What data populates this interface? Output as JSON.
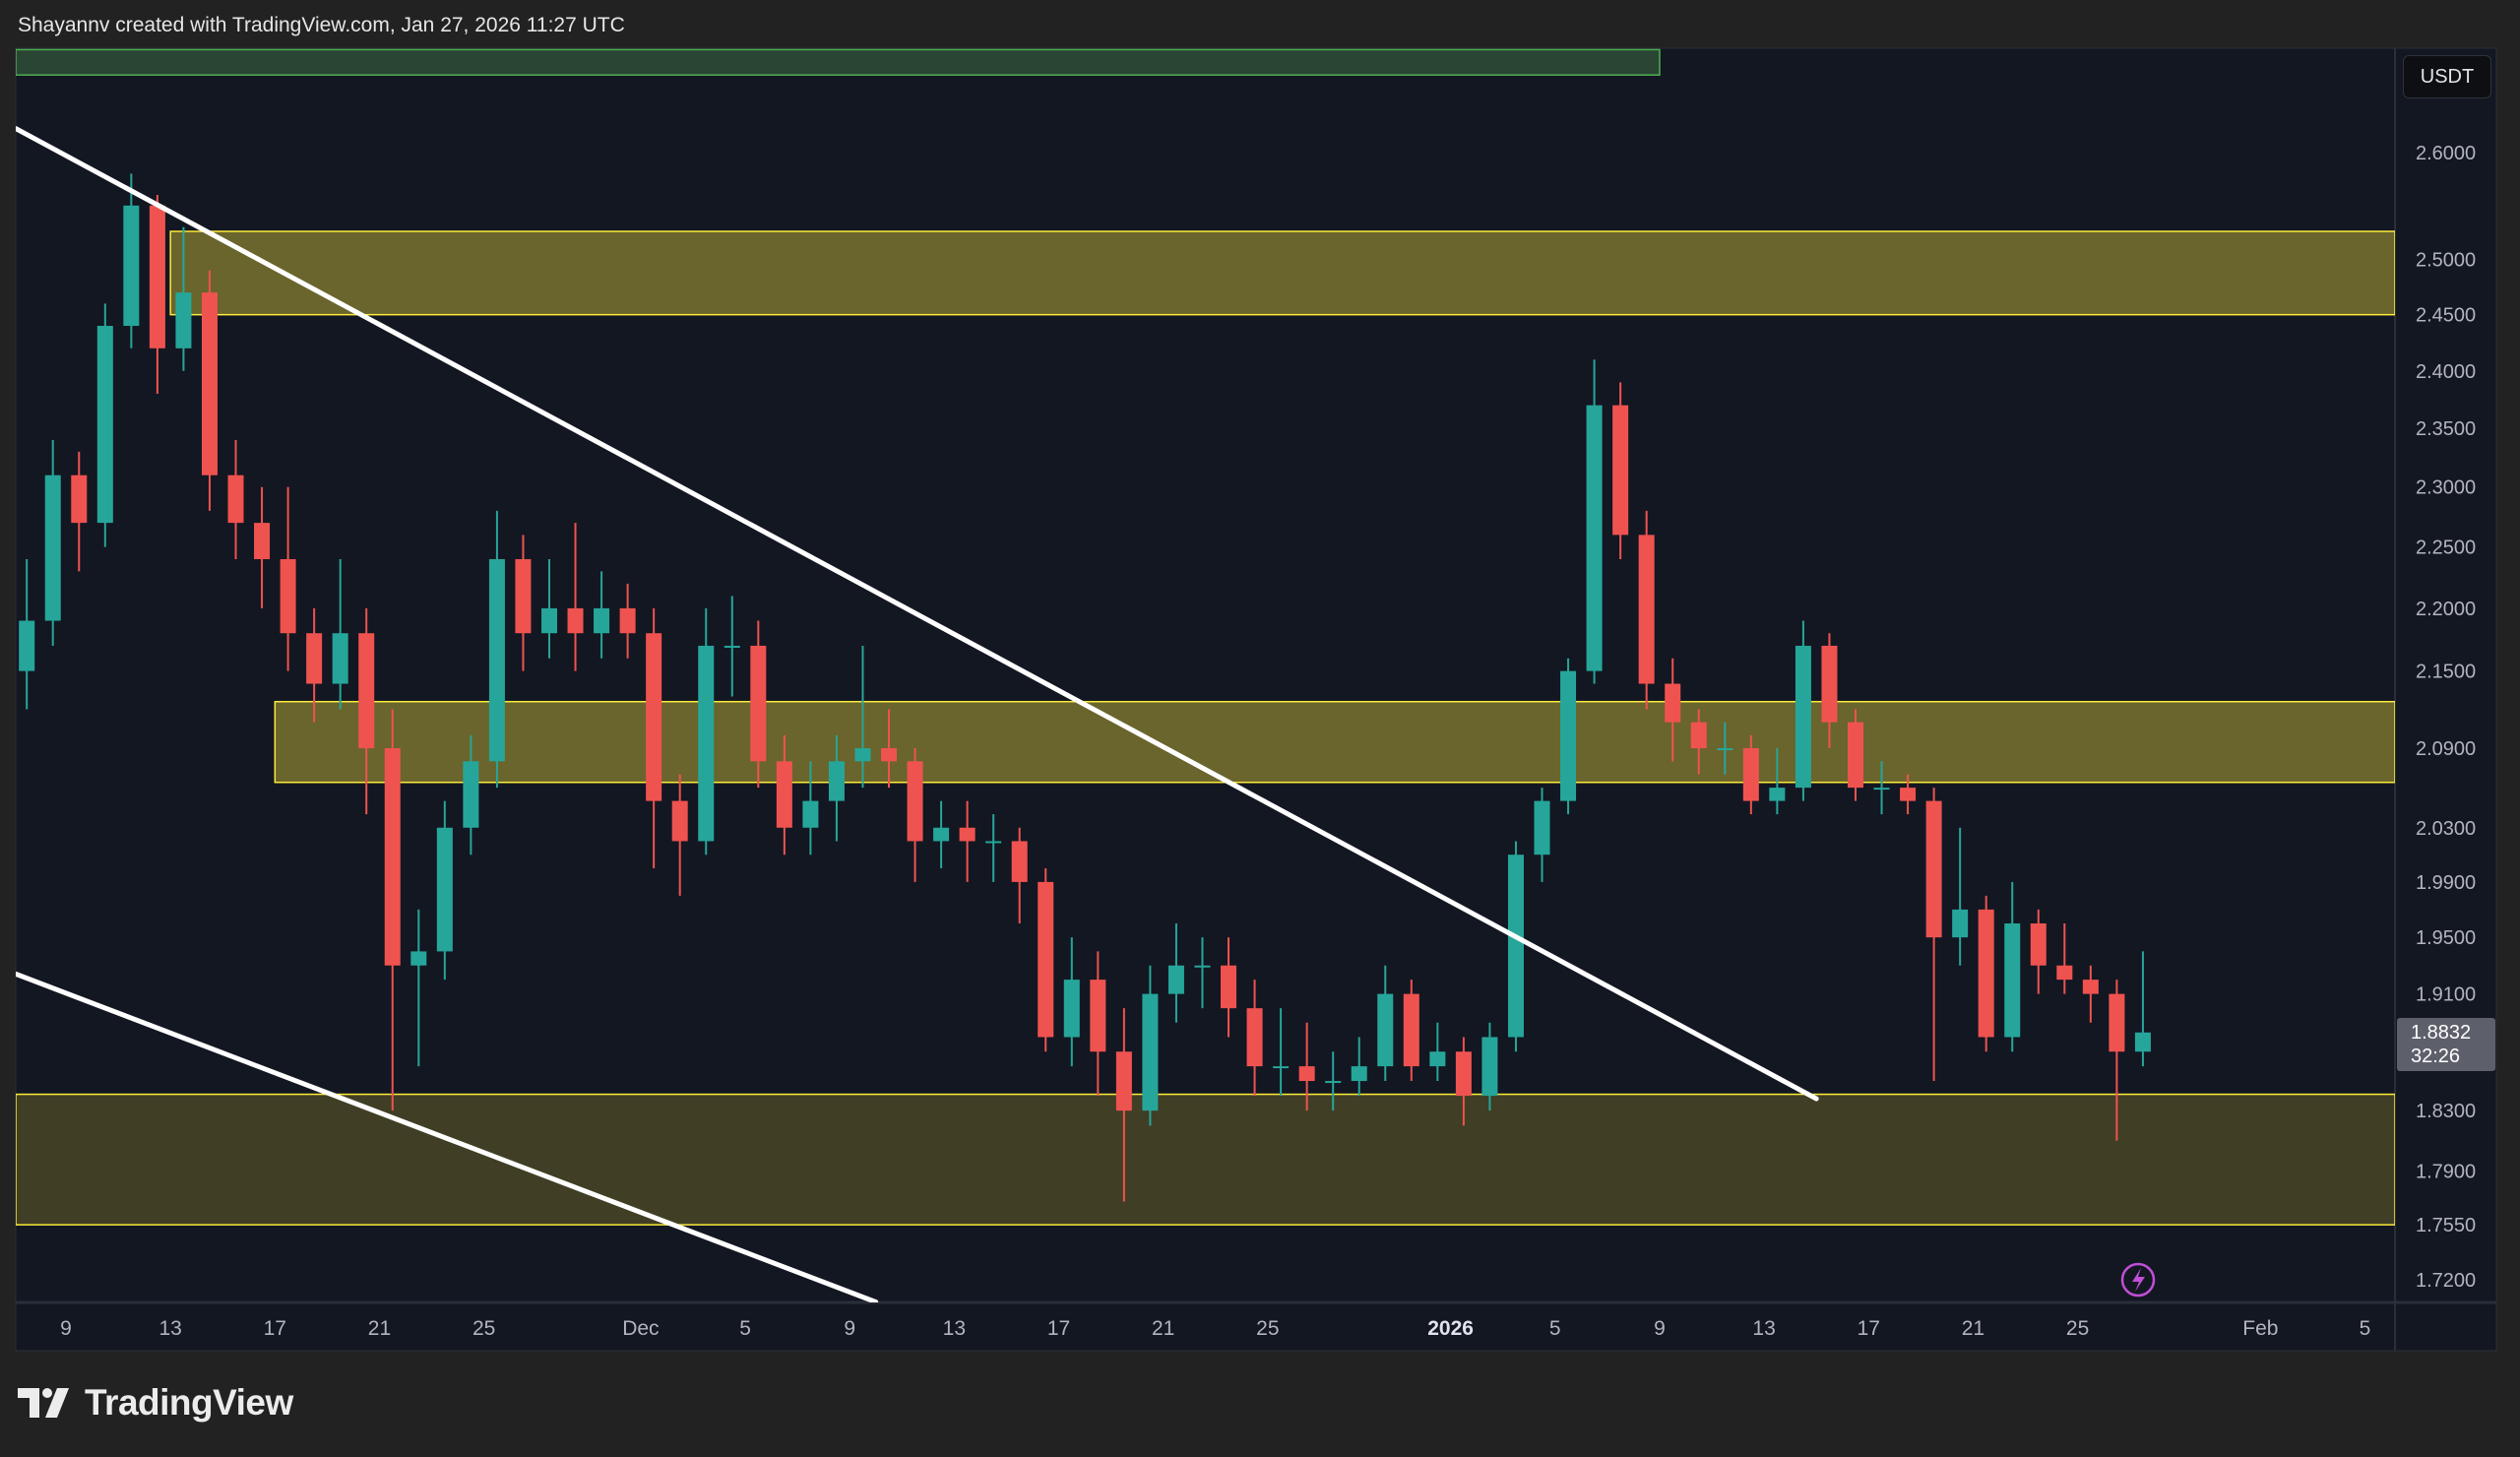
{
  "header": {
    "attribution": "Shayannv created with TradingView.com, Jan 27, 2026 11:27 UTC"
  },
  "price_axis": {
    "currency_button": "USDT",
    "last_price": "1.8832",
    "countdown": "32:26"
  },
  "footer": {
    "logo_text": "TradingView"
  },
  "colors": {
    "up": "#26a69a",
    "down": "#ef5350",
    "zone_fill": "#8a8a2a",
    "zone_border": "#ffeb3b",
    "green_zone": "#2d4a35",
    "trendline": "#ffffff",
    "background": "#131722",
    "alert_icon": "#c04fd6"
  },
  "chart_data": {
    "type": "candlestick",
    "title": "",
    "y_scale": "log",
    "ylim": [
      1.7,
      2.72
    ],
    "xlim": [
      "2025-11-07",
      "2026-02-08"
    ],
    "grid": false,
    "y_ticks": [
      "2.6000",
      "2.5000",
      "2.4500",
      "2.4000",
      "2.3500",
      "2.3000",
      "2.2500",
      "2.2000",
      "2.1500",
      "2.0900",
      "2.0300",
      "1.9900",
      "1.9500",
      "1.9100",
      "1.8300",
      "1.7900",
      "1.7550",
      "1.7200"
    ],
    "x_ticks": [
      {
        "label": "9",
        "date": "2025-11-09"
      },
      {
        "label": "13",
        "date": "2025-11-13"
      },
      {
        "label": "17",
        "date": "2025-11-17"
      },
      {
        "label": "21",
        "date": "2025-11-21"
      },
      {
        "label": "25",
        "date": "2025-11-25"
      },
      {
        "label": "Dec",
        "date": "2025-12-01"
      },
      {
        "label": "5",
        "date": "2025-12-05"
      },
      {
        "label": "9",
        "date": "2025-12-09"
      },
      {
        "label": "13",
        "date": "2025-12-13"
      },
      {
        "label": "17",
        "date": "2025-12-17"
      },
      {
        "label": "21",
        "date": "2025-12-21"
      },
      {
        "label": "25",
        "date": "2025-12-25"
      },
      {
        "label": "2026",
        "date": "2026-01-01",
        "bold": true
      },
      {
        "label": "5",
        "date": "2026-01-05"
      },
      {
        "label": "9",
        "date": "2026-01-09"
      },
      {
        "label": "13",
        "date": "2026-01-13"
      },
      {
        "label": "17",
        "date": "2026-01-17"
      },
      {
        "label": "21",
        "date": "2026-01-21"
      },
      {
        "label": "25",
        "date": "2026-01-25"
      },
      {
        "label": "Feb",
        "date": "2026-02-01"
      },
      {
        "label": "5",
        "date": "2026-02-05"
      }
    ],
    "candles_columns": [
      "date",
      "open",
      "high",
      "low",
      "close"
    ],
    "candles": [
      [
        "2025-11-07",
        2.15,
        2.24,
        2.12,
        2.19
      ],
      [
        "2025-11-08",
        2.19,
        2.34,
        2.17,
        2.31
      ],
      [
        "2025-11-09",
        2.31,
        2.33,
        2.23,
        2.27
      ],
      [
        "2025-11-10",
        2.27,
        2.46,
        2.25,
        2.44
      ],
      [
        "2025-11-11",
        2.44,
        2.58,
        2.42,
        2.55
      ],
      [
        "2025-11-12",
        2.55,
        2.56,
        2.38,
        2.42
      ],
      [
        "2025-11-13",
        2.42,
        2.53,
        2.4,
        2.47
      ],
      [
        "2025-11-14",
        2.47,
        2.49,
        2.28,
        2.31
      ],
      [
        "2025-11-15",
        2.31,
        2.34,
        2.24,
        2.27
      ],
      [
        "2025-11-16",
        2.27,
        2.3,
        2.2,
        2.24
      ],
      [
        "2025-11-17",
        2.24,
        2.3,
        2.15,
        2.18
      ],
      [
        "2025-11-18",
        2.18,
        2.2,
        2.11,
        2.14
      ],
      [
        "2025-11-19",
        2.14,
        2.24,
        2.12,
        2.18
      ],
      [
        "2025-11-20",
        2.18,
        2.2,
        2.04,
        2.09
      ],
      [
        "2025-11-21",
        2.09,
        2.12,
        1.83,
        1.93
      ],
      [
        "2025-11-22",
        1.93,
        1.97,
        1.86,
        1.94
      ],
      [
        "2025-11-23",
        1.94,
        2.05,
        1.92,
        2.03
      ],
      [
        "2025-11-24",
        2.03,
        2.1,
        2.01,
        2.08
      ],
      [
        "2025-11-25",
        2.08,
        2.28,
        2.06,
        2.24
      ],
      [
        "2025-11-26",
        2.24,
        2.26,
        2.15,
        2.18
      ],
      [
        "2025-11-27",
        2.18,
        2.24,
        2.16,
        2.2
      ],
      [
        "2025-11-28",
        2.2,
        2.27,
        2.15,
        2.18
      ],
      [
        "2025-11-29",
        2.18,
        2.23,
        2.16,
        2.2
      ],
      [
        "2025-11-30",
        2.2,
        2.22,
        2.16,
        2.18
      ],
      [
        "2025-12-01",
        2.18,
        2.2,
        2.0,
        2.05
      ],
      [
        "2025-12-02",
        2.05,
        2.07,
        1.98,
        2.02
      ],
      [
        "2025-12-03",
        2.02,
        2.2,
        2.01,
        2.17
      ],
      [
        "2025-12-04",
        2.17,
        2.21,
        2.13,
        2.17
      ],
      [
        "2025-12-05",
        2.17,
        2.19,
        2.06,
        2.08
      ],
      [
        "2025-12-06",
        2.08,
        2.1,
        2.01,
        2.03
      ],
      [
        "2025-12-07",
        2.03,
        2.08,
        2.01,
        2.05
      ],
      [
        "2025-12-08",
        2.05,
        2.1,
        2.02,
        2.08
      ],
      [
        "2025-12-09",
        2.08,
        2.17,
        2.06,
        2.09
      ],
      [
        "2025-12-10",
        2.09,
        2.12,
        2.06,
        2.08
      ],
      [
        "2025-12-11",
        2.08,
        2.09,
        1.99,
        2.02
      ],
      [
        "2025-12-12",
        2.02,
        2.05,
        2.0,
        2.03
      ],
      [
        "2025-12-13",
        2.03,
        2.05,
        1.99,
        2.02
      ],
      [
        "2025-12-14",
        2.02,
        2.04,
        1.99,
        2.02
      ],
      [
        "2025-12-15",
        2.02,
        2.03,
        1.96,
        1.99
      ],
      [
        "2025-12-16",
        1.99,
        2.0,
        1.87,
        1.88
      ],
      [
        "2025-12-17",
        1.88,
        1.95,
        1.86,
        1.92
      ],
      [
        "2025-12-18",
        1.92,
        1.94,
        1.84,
        1.87
      ],
      [
        "2025-12-19",
        1.87,
        1.9,
        1.77,
        1.83
      ],
      [
        "2025-12-20",
        1.83,
        1.93,
        1.82,
        1.91
      ],
      [
        "2025-12-21",
        1.91,
        1.96,
        1.89,
        1.93
      ],
      [
        "2025-12-22",
        1.93,
        1.95,
        1.9,
        1.93
      ],
      [
        "2025-12-23",
        1.93,
        1.95,
        1.88,
        1.9
      ],
      [
        "2025-12-24",
        1.9,
        1.92,
        1.84,
        1.86
      ],
      [
        "2025-12-25",
        1.86,
        1.9,
        1.84,
        1.86
      ],
      [
        "2025-12-26",
        1.86,
        1.89,
        1.83,
        1.85
      ],
      [
        "2025-12-27",
        1.85,
        1.87,
        1.83,
        1.85
      ],
      [
        "2025-12-28",
        1.85,
        1.88,
        1.84,
        1.86
      ],
      [
        "2025-12-29",
        1.86,
        1.93,
        1.85,
        1.91
      ],
      [
        "2025-12-30",
        1.91,
        1.92,
        1.85,
        1.86
      ],
      [
        "2025-12-31",
        1.86,
        1.89,
        1.85,
        1.87
      ],
      [
        "2026-01-01",
        1.87,
        1.88,
        1.82,
        1.84
      ],
      [
        "2026-01-02",
        1.84,
        1.89,
        1.83,
        1.88
      ],
      [
        "2026-01-03",
        1.88,
        2.02,
        1.87,
        2.01
      ],
      [
        "2026-01-04",
        2.01,
        2.06,
        1.99,
        2.05
      ],
      [
        "2026-01-05",
        2.05,
        2.16,
        2.04,
        2.15
      ],
      [
        "2026-01-06",
        2.15,
        2.41,
        2.14,
        2.37
      ],
      [
        "2026-01-07",
        2.37,
        2.39,
        2.24,
        2.26
      ],
      [
        "2026-01-08",
        2.26,
        2.28,
        2.12,
        2.14
      ],
      [
        "2026-01-09",
        2.14,
        2.16,
        2.08,
        2.11
      ],
      [
        "2026-01-10",
        2.11,
        2.12,
        2.07,
        2.09
      ],
      [
        "2026-01-11",
        2.09,
        2.11,
        2.07,
        2.09
      ],
      [
        "2026-01-12",
        2.09,
        2.1,
        2.04,
        2.05
      ],
      [
        "2026-01-13",
        2.05,
        2.09,
        2.04,
        2.06
      ],
      [
        "2026-01-14",
        2.06,
        2.19,
        2.05,
        2.17
      ],
      [
        "2026-01-15",
        2.17,
        2.18,
        2.09,
        2.11
      ],
      [
        "2026-01-16",
        2.11,
        2.12,
        2.05,
        2.06
      ],
      [
        "2026-01-17",
        2.06,
        2.08,
        2.04,
        2.06
      ],
      [
        "2026-01-18",
        2.06,
        2.07,
        2.04,
        2.05
      ],
      [
        "2026-01-19",
        2.05,
        2.06,
        1.85,
        1.95
      ],
      [
        "2026-01-20",
        1.95,
        2.03,
        1.93,
        1.97
      ],
      [
        "2026-01-21",
        1.97,
        1.98,
        1.87,
        1.88
      ],
      [
        "2026-01-22",
        1.88,
        1.99,
        1.87,
        1.96
      ],
      [
        "2026-01-23",
        1.96,
        1.97,
        1.91,
        1.93
      ],
      [
        "2026-01-24",
        1.93,
        1.96,
        1.91,
        1.92
      ],
      [
        "2026-01-25",
        1.92,
        1.93,
        1.89,
        1.91
      ],
      [
        "2026-01-26",
        1.91,
        1.92,
        1.81,
        1.87
      ],
      [
        "2026-01-27",
        1.87,
        1.94,
        1.86,
        1.8832
      ]
    ],
    "zones": [
      {
        "kind": "green",
        "from": "2025-11-07",
        "to": "2026-01-09",
        "top": 2.7,
        "bottom": 2.675
      },
      {
        "kind": "supply",
        "from": "2025-11-13",
        "to": "open",
        "top": 2.526,
        "bottom": 2.45
      },
      {
        "kind": "mid",
        "from": "2025-11-17",
        "to": "open",
        "top": 2.126,
        "bottom": 2.064
      },
      {
        "kind": "demand",
        "from": "2025-11-07",
        "to": "open",
        "top": 1.841,
        "bottom": 1.755
      }
    ],
    "trendlines": [
      {
        "name": "",
        "from": [
          "2025-11-07",
          2.623
        ],
        "to": [
          "2026-01-15",
          1.838
        ]
      },
      {
        "name": "",
        "from": [
          "2025-11-07",
          1.924
        ],
        "to": [
          "2025-12-10",
          1.706
        ]
      }
    ]
  }
}
